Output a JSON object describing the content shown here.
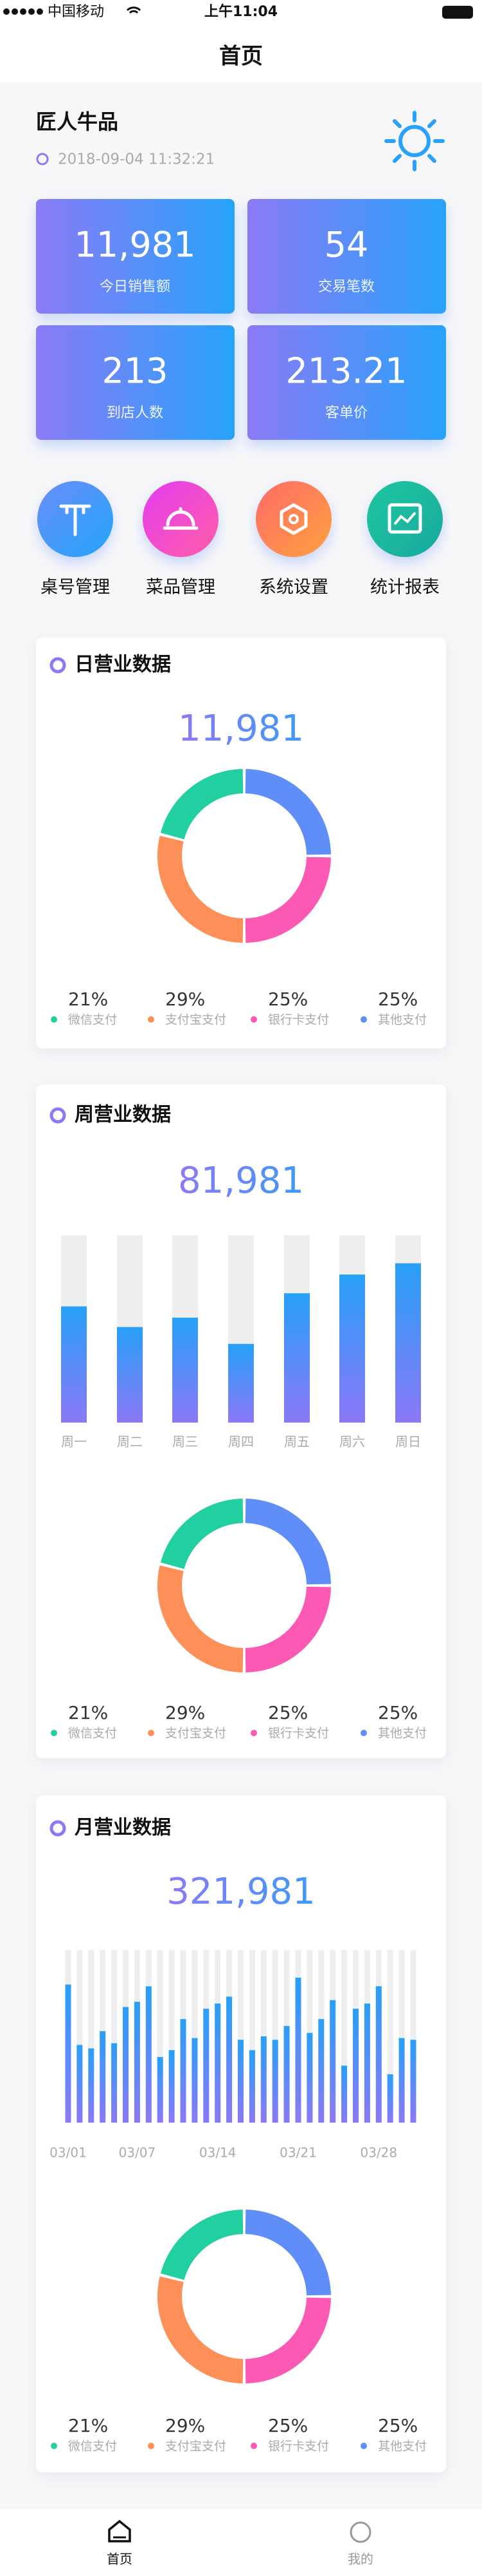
{
  "status_bar": {
    "carrier": "中国移动",
    "time": "上午11:04"
  },
  "nav_title": "首页",
  "store": {
    "name": "匠人牛品",
    "datetime": "2018-09-04 11:32:21"
  },
  "stats": [
    {
      "value": "11,981",
      "label": "今日销售额"
    },
    {
      "value": "54",
      "label": "交易笔数"
    },
    {
      "value": "213",
      "label": "到店人数"
    },
    {
      "value": "213.21",
      "label": "客单价"
    }
  ],
  "menu": [
    "桌号管理",
    "菜品管理",
    "系统设置",
    "统计报表"
  ],
  "sections": [
    {
      "title": "日营业数据",
      "total": "11,981",
      "donut": {
        "type": "pie",
        "categories": [
          "微信支付",
          "支付宝支付",
          "银行卡支付",
          "其他支付"
        ],
        "values": [
          21,
          29,
          25,
          25
        ],
        "value_labels": [
          "21%",
          "29%",
          "25%",
          "25%"
        ],
        "colors": [
          "#22cfa0",
          "#ff8f58",
          "#fb59b4",
          "#5f8ef8"
        ]
      }
    },
    {
      "title": "周营业数据",
      "total": "81,981",
      "bars": {
        "type": "bar",
        "categories": [
          "周一",
          "周二",
          "周三",
          "周四",
          "周五",
          "周六",
          "周日"
        ],
        "values": [
          62,
          51,
          56,
          42,
          69,
          79,
          85
        ],
        "ylim": [
          0,
          100
        ]
      },
      "donut": {
        "type": "pie",
        "categories": [
          "微信支付",
          "支付宝支付",
          "银行卡支付",
          "其他支付"
        ],
        "values": [
          21,
          29,
          25,
          25
        ],
        "value_labels": [
          "21%",
          "29%",
          "25%",
          "25%"
        ],
        "colors": [
          "#22cfa0",
          "#ff8f58",
          "#fb59b4",
          "#5f8ef8"
        ]
      }
    },
    {
      "title": "月营业数据",
      "total": "321,981",
      "bars": {
        "type": "bar",
        "categories": [
          "03/01",
          null,
          null,
          null,
          null,
          null,
          "03/07",
          null,
          null,
          null,
          null,
          null,
          null,
          "03/14",
          null,
          null,
          null,
          null,
          null,
          null,
          "03/21",
          null,
          null,
          null,
          null,
          null,
          null,
          "03/28",
          null,
          null,
          null
        ],
        "values": [
          80,
          45,
          43,
          53,
          46,
          67,
          70,
          79,
          38,
          42,
          60,
          49,
          66,
          69,
          73,
          48,
          42,
          50,
          48,
          56,
          84,
          52,
          60,
          71,
          33,
          66,
          69,
          79,
          28,
          49,
          48
        ],
        "ylim": [
          0,
          100
        ]
      },
      "donut": {
        "type": "pie",
        "categories": [
          "微信支付",
          "支付宝支付",
          "银行卡支付",
          "其他支付"
        ],
        "values": [
          21,
          29,
          25,
          25
        ],
        "value_labels": [
          "21%",
          "29%",
          "25%",
          "25%"
        ],
        "colors": [
          "#22cfa0",
          "#ff8f58",
          "#fb59b4",
          "#5f8ef8"
        ]
      }
    }
  ],
  "tabs": [
    "首页",
    "我的"
  ]
}
